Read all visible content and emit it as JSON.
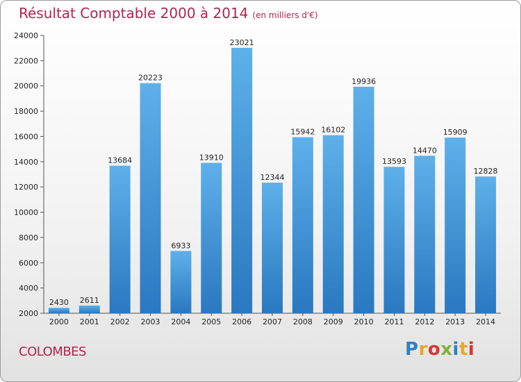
{
  "chart_data": {
    "type": "bar",
    "title": "Résultat Comptable 2000 à 2014",
    "subtitle": "(en milliers d'€)",
    "categories": [
      "2000",
      "2001",
      "2002",
      "2003",
      "2004",
      "2005",
      "2006",
      "2007",
      "2008",
      "2009",
      "2010",
      "2011",
      "2012",
      "2013",
      "2014"
    ],
    "values": [
      2430,
      2611,
      13684,
      20223,
      6933,
      13910,
      23021,
      12344,
      15942,
      16102,
      19936,
      13593,
      14470,
      15909,
      12828
    ],
    "ylim": [
      2000,
      24000
    ],
    "yticks": [
      2000,
      4000,
      6000,
      8000,
      10000,
      12000,
      14000,
      16000,
      18000,
      20000,
      22000,
      24000
    ],
    "xlabel": "",
    "ylabel": "",
    "grid": false,
    "bar_color": "#3d8fd6",
    "title_color": "#b0244d"
  },
  "footer": {
    "city": "COLOMBES",
    "logo_text": "Proxiti"
  }
}
